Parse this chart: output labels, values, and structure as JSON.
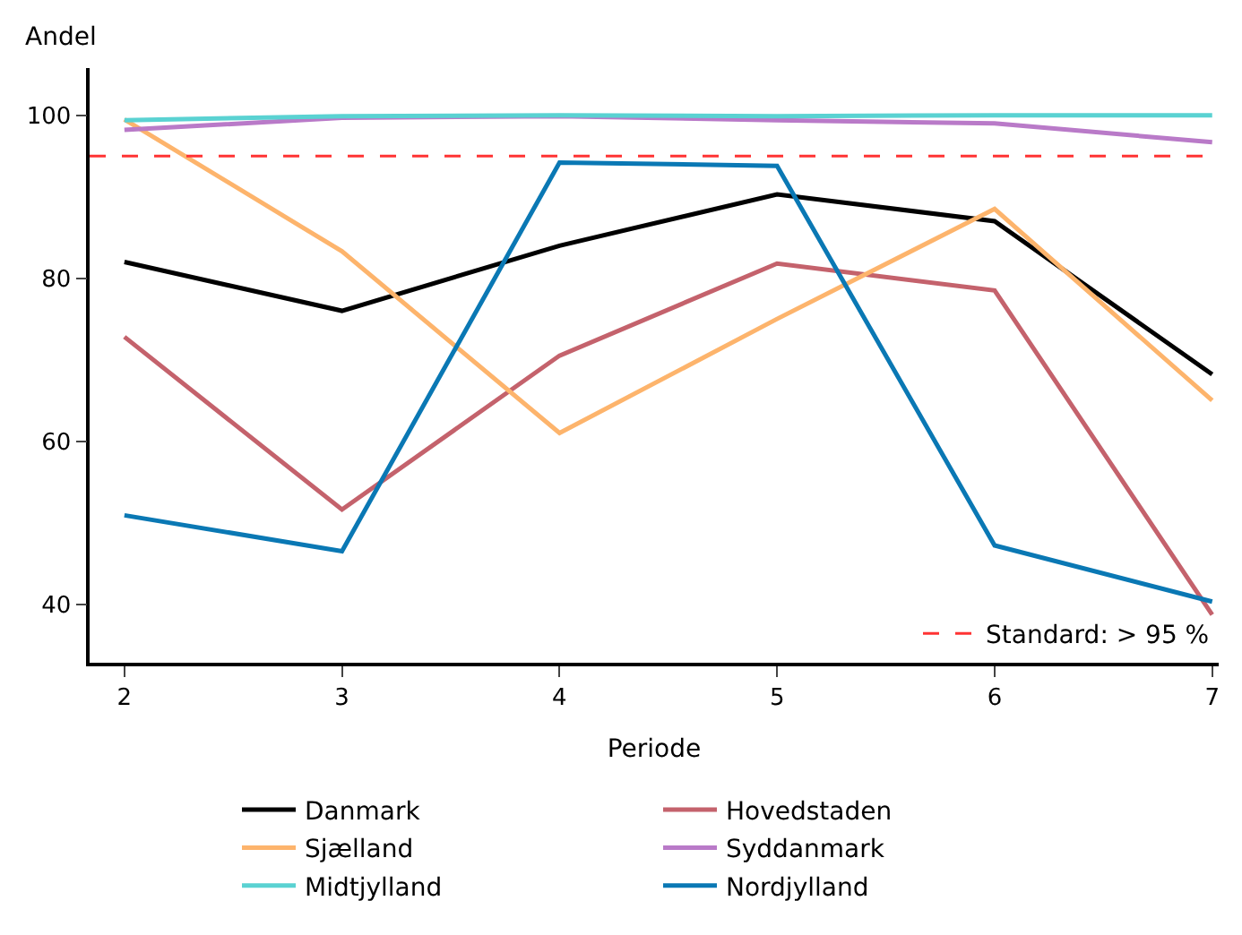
{
  "chart_data": {
    "type": "line",
    "xlabel": "Periode",
    "ylabel": "Andel",
    "x": [
      2,
      3,
      4,
      5,
      6,
      7
    ],
    "xlim": [
      1.84,
      7.03
    ],
    "xticks": [
      2,
      3,
      4,
      5,
      6,
      7
    ],
    "ylim": [
      32.8,
      105.8
    ],
    "yticks": [
      40,
      60,
      80,
      100
    ],
    "series": [
      {
        "name": "Danmark",
        "color": "#000000",
        "values": [
          82,
          76,
          84,
          90.3,
          87,
          68.2
        ]
      },
      {
        "name": "Hovedstaden",
        "color": "#c4626c",
        "values": [
          72.8,
          51.6,
          70.5,
          81.8,
          78.5,
          38.7
        ]
      },
      {
        "name": "Sjælland",
        "color": "#fdb46c",
        "values": [
          99.5,
          83.3,
          61,
          75,
          88.5,
          65
        ]
      },
      {
        "name": "Syddanmark",
        "color": "#b97ac8",
        "values": [
          98.2,
          99.7,
          99.9,
          99.4,
          99,
          96.7
        ]
      },
      {
        "name": "Midtjylland",
        "color": "#5ad2d2",
        "values": [
          99.4,
          99.9,
          100,
          99.9,
          100,
          100
        ]
      },
      {
        "name": "Nordjylland",
        "color": "#0a78b4",
        "values": [
          50.9,
          46.5,
          94.2,
          93.8,
          47.2,
          40.3
        ]
      }
    ],
    "ref_lines": [
      {
        "axis": "y",
        "value": 95,
        "label": "Standard: > 95 %",
        "color": "#ff3333",
        "line_style": "dashed"
      }
    ],
    "grid": false,
    "legend": "bottom",
    "marker": "none",
    "line_style": "solid"
  }
}
